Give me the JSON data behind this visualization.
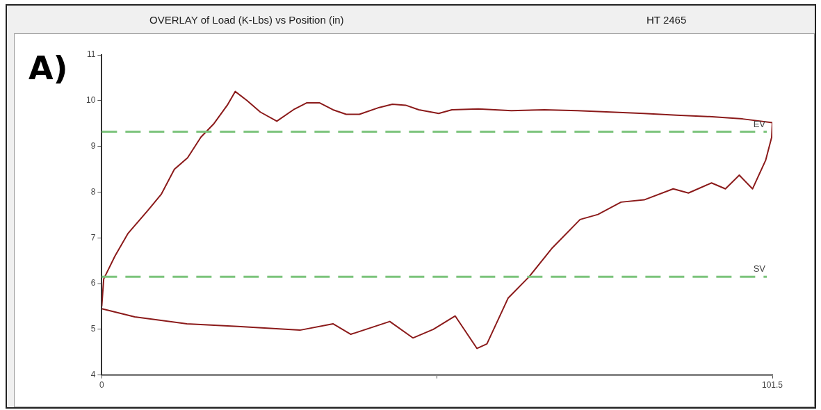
{
  "chart_data": {
    "type": "line",
    "title": "OVERLAY of Load (K-Lbs) vs Position (in)",
    "subtitle": "HT 2465",
    "annotations": [
      "A)"
    ],
    "series": [
      {
        "color": "#8b1a1a",
        "x": [
          0,
          0.3,
          2,
          4,
          7,
          9,
          11,
          13,
          15,
          17,
          19,
          20.2,
          22,
          24,
          26.5,
          29,
          31,
          33,
          35,
          37,
          39,
          42,
          44,
          46,
          48,
          51,
          53,
          57,
          62,
          67,
          72,
          77,
          82,
          87,
          92,
          97,
          101.5,
          101.4,
          100.5,
          98.5,
          96.5,
          94.4,
          92.3,
          88.8,
          86.5,
          82.1,
          78.6,
          75.1,
          72.4,
          68.2,
          64.7,
          61.5,
          58.3,
          56.8,
          53.5,
          50.2,
          47.1,
          43.6,
          37.7,
          35,
          30,
          20.6,
          12.9,
          5,
          0
        ],
        "values": [
          5.5,
          6.1,
          6.6,
          7.1,
          7.6,
          7.95,
          8.5,
          8.75,
          9.2,
          9.5,
          9.9,
          10.2,
          10.0,
          9.75,
          9.55,
          9.8,
          9.95,
          9.95,
          9.8,
          9.7,
          9.7,
          9.85,
          9.92,
          9.9,
          9.8,
          9.72,
          9.8,
          9.82,
          9.78,
          9.8,
          9.78,
          9.75,
          9.72,
          9.68,
          9.65,
          9.6,
          9.52,
          9.2,
          8.7,
          8.07,
          8.37,
          8.07,
          8.2,
          7.98,
          8.07,
          7.83,
          7.78,
          7.51,
          7.4,
          6.78,
          6.15,
          5.68,
          4.68,
          4.58,
          5.29,
          5.0,
          4.81,
          5.17,
          4.89,
          5.12,
          4.98,
          5.06,
          5.12,
          5.27,
          5.45
        ]
      }
    ],
    "xlim": [
      0,
      101.5
    ],
    "xticks": [
      0,
      {
        "value": 50.75,
        "label": null
      },
      101.5
    ],
    "ylim": [
      4,
      11
    ],
    "yticks": [
      4,
      5,
      6,
      7,
      8,
      9,
      10,
      11
    ],
    "ref_lines": [
      {
        "axis": "y",
        "value": 9.32,
        "label": "EV",
        "color": "#7cc47c",
        "line_style": "dashed"
      },
      {
        "axis": "y",
        "value": 6.15,
        "label": "SV",
        "color": "#7cc47c",
        "line_style": "dashed"
      }
    ],
    "grid": false,
    "legend": false,
    "marker": "none",
    "line_style": "solid"
  }
}
